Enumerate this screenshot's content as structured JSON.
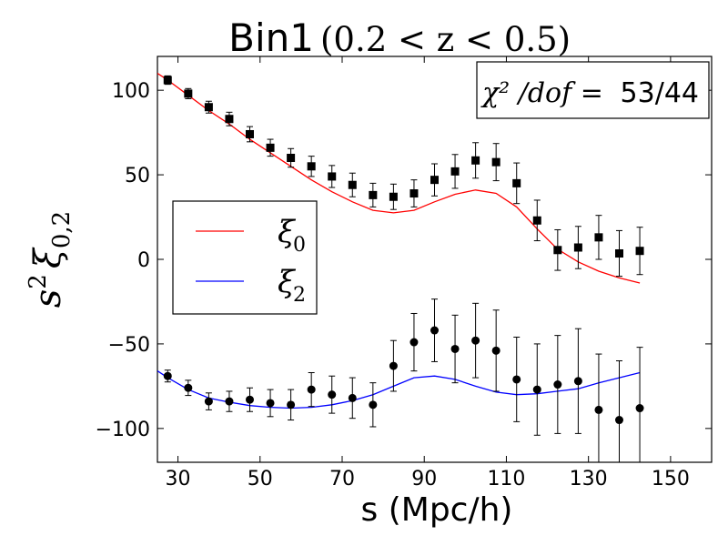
{
  "chart_data": {
    "type": "scatter",
    "title_text": "Bin1",
    "title_math": "(0.2 < z < 0.5)",
    "xlabel": "s (Mpc/h)",
    "ylabel_base": "s",
    "ylabel_sup": "2",
    "ylabel_xi": "ξ",
    "ylabel_sub": "0,2",
    "xlim": [
      25,
      160
    ],
    "ylim": [
      -120,
      120
    ],
    "xticks": [
      30,
      50,
      70,
      90,
      110,
      130,
      150
    ],
    "yticks": [
      100,
      50,
      0,
      -50,
      -100
    ],
    "ytick_labels": [
      "100",
      "50",
      "0",
      "−50",
      "−100"
    ],
    "chi2_box": {
      "math": "χ² /dof =",
      "value": "53/44"
    },
    "legend": {
      "placement": "center-left",
      "entries": [
        {
          "symbol": "ξ",
          "sub": "0",
          "color": "#ff0000"
        },
        {
          "symbol": "ξ",
          "sub": "2",
          "color": "#0000ff"
        }
      ]
    },
    "lines": [
      {
        "color": "#ff0000",
        "x": [
          25,
          27.5,
          32.5,
          37.5,
          42.5,
          47.5,
          52.5,
          57.5,
          62.5,
          67.5,
          72.5,
          77.5,
          82.5,
          87.5,
          92.5,
          97.5,
          102.5,
          107.5,
          112.5,
          117.5,
          122.5,
          127.5,
          132.5,
          137.5,
          142.5
        ],
        "y": [
          110,
          106,
          97,
          88,
          80,
          71,
          63,
          55,
          47,
          40,
          34,
          29,
          27.5,
          29,
          34,
          38.5,
          41,
          39,
          31,
          18,
          6,
          -1.5,
          -7,
          -11,
          -14
        ]
      },
      {
        "color": "#0000ff",
        "x": [
          25,
          27.5,
          32.5,
          37.5,
          42.5,
          47.5,
          52.5,
          57.5,
          62.5,
          67.5,
          72.5,
          77.5,
          82.5,
          87.5,
          92.5,
          97.5,
          102.5,
          107.5,
          112.5,
          117.5,
          122.5,
          127.5,
          132.5,
          137.5,
          142.5
        ],
        "y": [
          -66,
          -70,
          -77,
          -82,
          -84.5,
          -86.5,
          -87.5,
          -88,
          -87.5,
          -86,
          -83.5,
          -80,
          -75,
          -70,
          -69,
          -71,
          -75,
          -78.5,
          -80,
          -79.5,
          -78,
          -76.5,
          -73,
          -70,
          -67
        ]
      }
    ],
    "points": [
      {
        "marker": "square",
        "x": [
          27.5,
          32.5,
          37.5,
          42.5,
          47.5,
          52.5,
          57.5,
          62.5,
          67.5,
          72.5,
          77.5,
          82.5,
          87.5,
          92.5,
          97.5,
          102.5,
          107.5,
          112.5,
          117.5,
          122.5,
          127.5,
          132.5,
          137.5,
          142.5
        ],
        "y": [
          106,
          98,
          90,
          83,
          74,
          66,
          60,
          55,
          49,
          44,
          38,
          37,
          39,
          47,
          52,
          58.5,
          57.5,
          45,
          23,
          5.5,
          7,
          13,
          3.5,
          5
        ],
        "err": [
          2.5,
          3,
          3.5,
          4,
          4.5,
          5,
          5.5,
          6,
          6.5,
          7,
          7,
          7.5,
          8,
          9.5,
          10,
          10.5,
          11,
          12,
          12,
          12,
          12.5,
          13,
          13.5,
          14
        ]
      },
      {
        "marker": "circle",
        "x": [
          27.5,
          32.5,
          37.5,
          42.5,
          47.5,
          52.5,
          57.5,
          62.5,
          67.5,
          72.5,
          77.5,
          82.5,
          87.5,
          92.5,
          97.5,
          102.5,
          107.5,
          112.5,
          117.5,
          122.5,
          127.5,
          132.5,
          137.5,
          142.5
        ],
        "y": [
          -69,
          -76,
          -84,
          -84,
          -83,
          -85,
          -86,
          -77,
          -80,
          -82,
          -86,
          -63,
          -49,
          -42,
          -53,
          -48,
          -54,
          -71,
          -77,
          -74,
          -72,
          -89,
          -95,
          -88
        ],
        "err": [
          3.5,
          4.5,
          5,
          6,
          7,
          8,
          9,
          10,
          11,
          12,
          13,
          15,
          17,
          18.5,
          20,
          22,
          24,
          25,
          27,
          29,
          31,
          33,
          35,
          36
        ]
      }
    ]
  }
}
